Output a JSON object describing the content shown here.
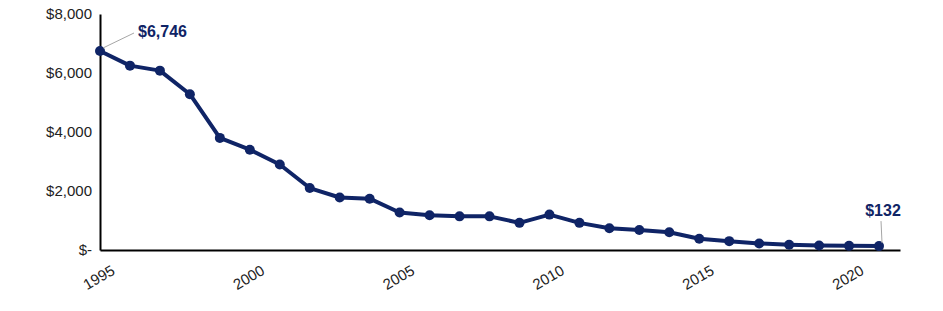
{
  "chart_data": {
    "type": "line",
    "color": "#0f2466",
    "x": [
      1995,
      1996,
      1997,
      1998,
      1999,
      2000,
      2001,
      2002,
      2003,
      2004,
      2005,
      2006,
      2007,
      2008,
      2009,
      2010,
      2011,
      2012,
      2013,
      2014,
      2015,
      2016,
      2017,
      2018,
      2019,
      2020,
      2021
    ],
    "values": [
      6746,
      6250,
      6080,
      5280,
      3800,
      3400,
      2900,
      2100,
      1780,
      1740,
      1270,
      1180,
      1140,
      1140,
      920,
      1200,
      920,
      740,
      680,
      600,
      380,
      300,
      220,
      180,
      150,
      140,
      132
    ],
    "value_labels": [
      "$6,746",
      null,
      null,
      null,
      null,
      null,
      null,
      null,
      null,
      null,
      null,
      null,
      null,
      null,
      null,
      null,
      null,
      null,
      null,
      null,
      null,
      null,
      null,
      null,
      null,
      null,
      "$132"
    ],
    "data_labels": true,
    "marker": "circle",
    "grid": false,
    "xlim": [
      1995,
      2021.7
    ],
    "xticks": [
      1995,
      2000,
      2005,
      2010,
      2015,
      2020
    ],
    "ylim": [
      0,
      8000
    ],
    "yticks": [
      {
        "value": 0,
        "label": "$-"
      },
      {
        "value": 2000,
        "label": "$2,000"
      },
      {
        "value": 4000,
        "label": "$4,000"
      },
      {
        "value": 6000,
        "label": "$6,000"
      },
      {
        "value": 8000,
        "label": "$8,000"
      }
    ]
  }
}
